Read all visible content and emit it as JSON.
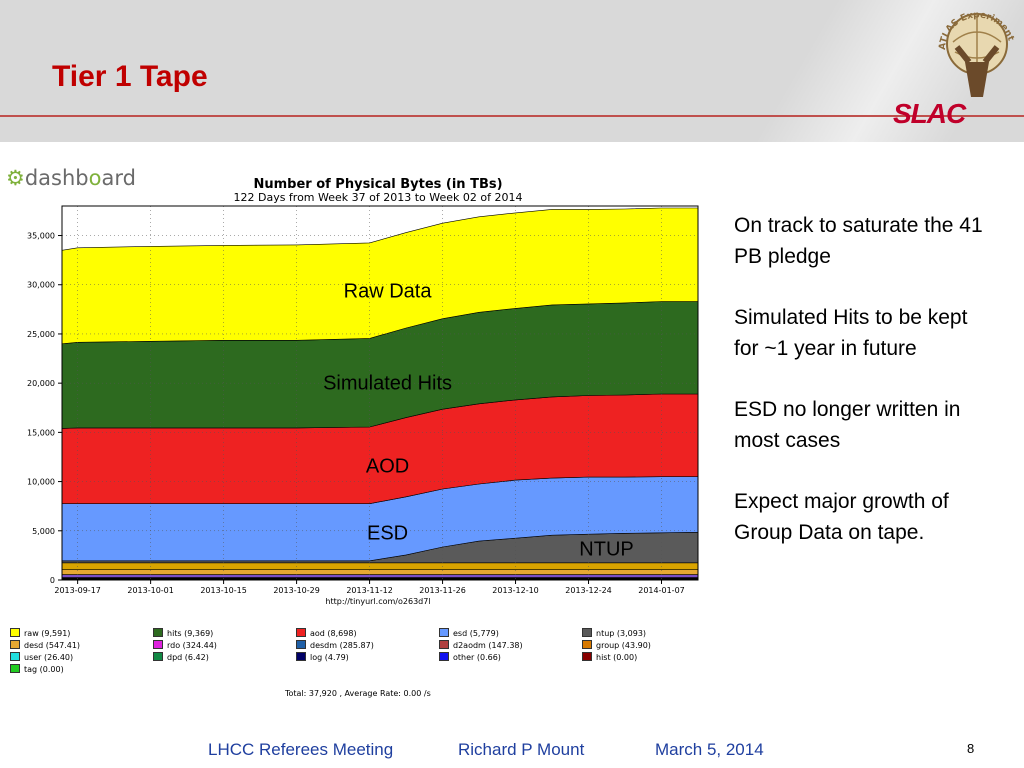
{
  "slide": {
    "title": "Tier 1 Tape",
    "logo_text": "SLAC",
    "atlas_logo_text": "ATLAS Experiment",
    "dashboard_logo": {
      "prefix": "dashb",
      "accent": "o",
      "suffix": "ard"
    },
    "bullets": [
      "On track to saturate the 41 PB pledge",
      "Simulated Hits to be kept for ~1 year in future",
      "ESD no longer written in most cases",
      "Expect major growth of Group Data on tape."
    ],
    "footer": {
      "meeting": "LHCC Referees Meeting",
      "author": "Richard P Mount",
      "date": "March 5, 2014"
    },
    "page_number": "8"
  },
  "chart_data": {
    "type": "area",
    "stacked": true,
    "title": "Number of Physical Bytes (in TBs)",
    "subtitle": "122 Days from Week 37 of 2013 to Week 02 of 2014",
    "url_label": "http://tinyurl.com/o263d7l",
    "ylim": [
      0,
      38000
    ],
    "y_ticks": [
      0,
      5000,
      10000,
      15000,
      20000,
      25000,
      30000,
      35000
    ],
    "y_tick_labels": [
      "0",
      "5,000",
      "10,000",
      "15,000",
      "20,000",
      "25,000",
      "30,000",
      "35,000"
    ],
    "x_tick_labels": [
      "2013-09-17",
      "2013-10-01",
      "2013-10-15",
      "2013-10-29",
      "2013-11-12",
      "2013-11-26",
      "2013-12-10",
      "2013-12-24",
      "2014-01-07"
    ],
    "x": [
      "2013-09-14",
      "2013-09-17",
      "2013-10-01",
      "2013-10-15",
      "2013-10-29",
      "2013-11-12",
      "2013-11-19",
      "2013-11-26",
      "2013-12-03",
      "2013-12-10",
      "2013-12-17",
      "2013-12-24",
      "2013-12-31",
      "2014-01-07",
      "2014-01-14"
    ],
    "series": [
      {
        "name": "other",
        "color": "#000000",
        "values": [
          250,
          250,
          250,
          250,
          250,
          250,
          250,
          250,
          250,
          250,
          250,
          250,
          250,
          250,
          250
        ]
      },
      {
        "name": "desdm",
        "color": "#7a4fc8",
        "values": [
          300,
          300,
          300,
          300,
          300,
          300,
          300,
          300,
          300,
          300,
          300,
          300,
          300,
          300,
          300
        ]
      },
      {
        "name": "desd",
        "color": "#e6a832",
        "values": [
          500,
          500,
          500,
          500,
          500,
          500,
          500,
          500,
          500,
          500,
          500,
          500,
          500,
          500,
          500
        ]
      },
      {
        "name": "group",
        "color": "#d9a400",
        "values": [
          700,
          700,
          700,
          700,
          700,
          700,
          700,
          700,
          700,
          700,
          700,
          700,
          700,
          700,
          700
        ]
      },
      {
        "name": "ntup",
        "color": "#5a5a5a",
        "values": [
          200,
          200,
          200,
          200,
          200,
          200,
          800,
          1600,
          2200,
          2500,
          2800,
          2900,
          3000,
          3050,
          3100
        ]
      },
      {
        "name": "esd",
        "color": "#6699ff",
        "values": [
          5800,
          5800,
          5800,
          5800,
          5800,
          5800,
          5900,
          5900,
          5800,
          5900,
          5800,
          5800,
          5700,
          5700,
          5650
        ]
      },
      {
        "name": "aod",
        "color": "#ee2222",
        "values": [
          7650,
          7700,
          7700,
          7700,
          7700,
          7800,
          8050,
          8100,
          8150,
          8150,
          8250,
          8300,
          8350,
          8400,
          8400
        ]
      },
      {
        "name": "hits",
        "color": "#2d6a1f",
        "values": [
          8600,
          8700,
          8800,
          8900,
          8900,
          9000,
          9100,
          9200,
          9300,
          9300,
          9350,
          9300,
          9350,
          9400,
          9400
        ]
      },
      {
        "name": "raw",
        "color": "#ffff00",
        "values": [
          9500,
          9600,
          9650,
          9650,
          9700,
          9700,
          9700,
          9700,
          9700,
          9700,
          9700,
          9600,
          9550,
          9500,
          9500
        ]
      }
    ],
    "area_labels": [
      {
        "text": "Raw Data",
        "series": "raw",
        "x": "2013-11-12"
      },
      {
        "text": "Simulated Hits",
        "series": "hits",
        "x": "2013-11-12"
      },
      {
        "text": "AOD",
        "series": "aod",
        "x": "2013-11-12"
      },
      {
        "text": "ESD",
        "series": "esd",
        "x": "2013-11-12"
      },
      {
        "text": "NTUP",
        "series": "ntup",
        "x": "2013-12-24"
      }
    ],
    "legend": [
      {
        "label": "raw (9,591)",
        "color": "#ffff00"
      },
      {
        "label": "hits (9,369)",
        "color": "#2d6a1f"
      },
      {
        "label": "aod (8,698)",
        "color": "#ee2222"
      },
      {
        "label": "esd (5,779)",
        "color": "#6699ff"
      },
      {
        "label": "ntup (3,093)",
        "color": "#5a5a5a"
      },
      {
        "label": "desd (547.41)",
        "color": "#e6a832"
      },
      {
        "label": "rdo (324.44)",
        "color": "#dd22dd"
      },
      {
        "label": "desdm (285.87)",
        "color": "#1f5fa6"
      },
      {
        "label": "d2aodm (147.38)",
        "color": "#b04040"
      },
      {
        "label": "group (43.90)",
        "color": "#d97a00"
      },
      {
        "label": "user (26.40)",
        "color": "#22dddd"
      },
      {
        "label": "dpd (6.42)",
        "color": "#118844"
      },
      {
        "label": "log (4.79)",
        "color": "#000066"
      },
      {
        "label": "other (0.66)",
        "color": "#1111ee"
      },
      {
        "label": "hist (0.00)",
        "color": "#880000"
      },
      {
        "label": "tag (0.00)",
        "color": "#22cc22"
      }
    ],
    "total_text": "Total: 37,920 , Average Rate: 0.00 /s"
  }
}
